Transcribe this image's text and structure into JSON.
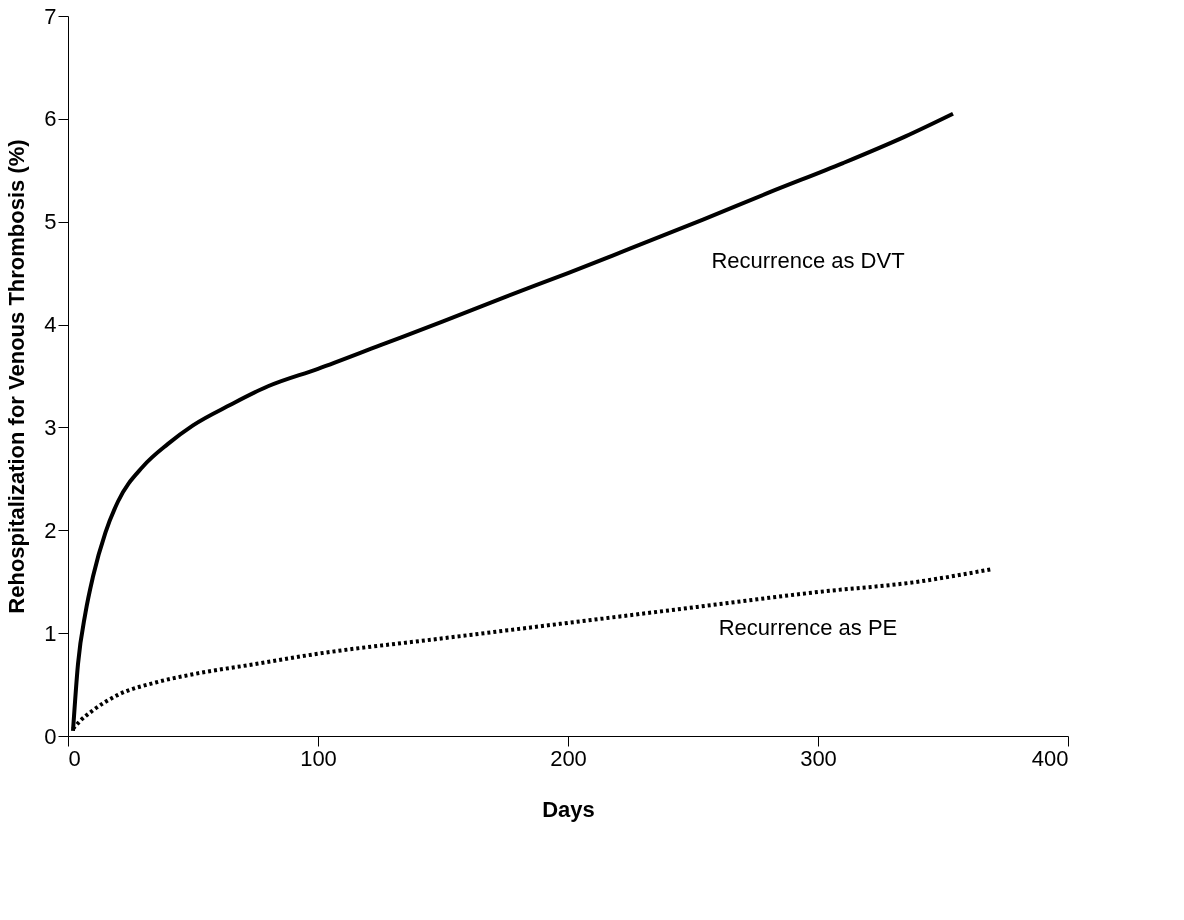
{
  "chart_data": {
    "type": "line",
    "xlabel": "Days",
    "ylabel": "Rehospitalization for Venous Thrombosis (%)",
    "xlim": [
      0,
      400
    ],
    "xticks": [
      0,
      100,
      200,
      300,
      400
    ],
    "ylim": [
      0,
      7
    ],
    "yticks": [
      0,
      1,
      2,
      3,
      4,
      5,
      6,
      7
    ],
    "grid": false,
    "series": [
      {
        "color": "#000000",
        "line_style": "solid",
        "x": [
          2,
          4,
          7,
          10,
          15,
          20,
          30,
          40,
          50,
          65,
          80,
          100,
          125,
          150,
          175,
          200,
          225,
          254,
          280,
          310,
          335,
          354
        ],
        "values": [
          0.05,
          0.7,
          1.2,
          1.55,
          1.98,
          2.28,
          2.62,
          2.84,
          3.02,
          3.22,
          3.4,
          3.57,
          3.8,
          4.03,
          4.27,
          4.5,
          4.74,
          5.02,
          5.28,
          5.57,
          5.83,
          6.05
        ]
      },
      {
        "color": "#000000",
        "line_style": "dotted",
        "x": [
          2,
          5,
          10,
          20,
          35,
          50,
          75,
          100,
          150,
          200,
          250,
          300,
          340,
          369
        ],
        "values": [
          0.07,
          0.15,
          0.25,
          0.4,
          0.52,
          0.6,
          0.7,
          0.8,
          0.95,
          1.1,
          1.25,
          1.4,
          1.5,
          1.62
        ]
      }
    ],
    "annotations": [
      "Recurrence as DVT",
      "Recurrence as PE"
    ]
  }
}
